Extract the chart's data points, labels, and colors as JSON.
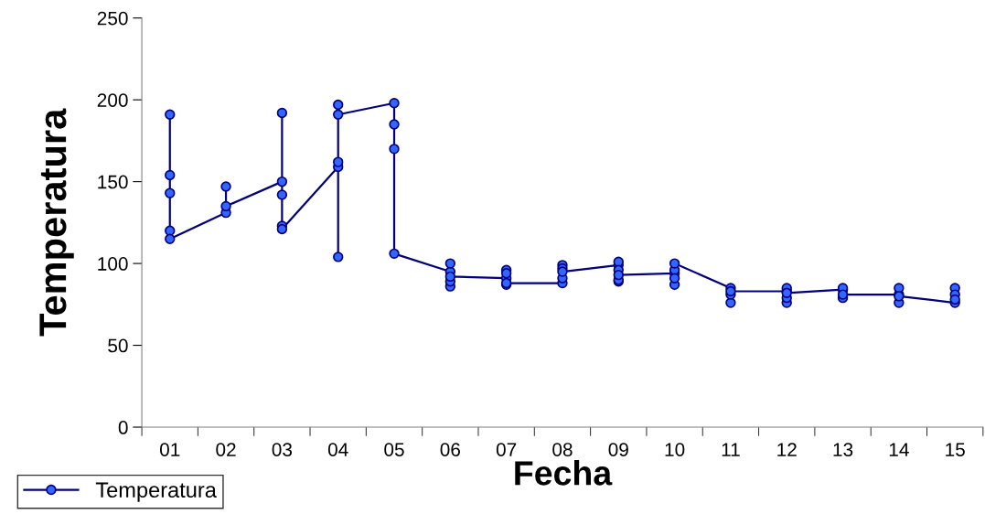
{
  "chart_data": {
    "type": "line",
    "xlabel": "Fecha",
    "ylabel": "Temperatura",
    "categories": [
      "01",
      "02",
      "03",
      "04",
      "05",
      "06",
      "07",
      "08",
      "09",
      "10",
      "11",
      "12",
      "13",
      "14",
      "15"
    ],
    "series": [
      {
        "name": "Temperatura",
        "color": "#000080",
        "x": [
          "01",
          "01",
          "01",
          "01",
          "01",
          "02",
          "02",
          "02",
          "03",
          "03",
          "03",
          "03",
          "03",
          "04",
          "04",
          "04",
          "04",
          "04",
          "05",
          "05",
          "05",
          "05",
          "06",
          "06",
          "06",
          "06",
          "06",
          "07",
          "07",
          "07",
          "07",
          "07",
          "08",
          "08",
          "08",
          "08",
          "08",
          "09",
          "09",
          "09",
          "09",
          "09",
          "09",
          "10",
          "10",
          "10",
          "10",
          "10",
          "11",
          "11",
          "11",
          "11",
          "12",
          "12",
          "12",
          "12",
          "12",
          "13",
          "13",
          "13",
          "13",
          "14",
          "14",
          "14",
          "14",
          "15",
          "15",
          "15",
          "15"
        ],
        "values": [
          191,
          154,
          143,
          120,
          115,
          131,
          147,
          135,
          150,
          192,
          142,
          123,
          121,
          159,
          162,
          104,
          197,
          191,
          198,
          185,
          170,
          106,
          95,
          100,
          86,
          89,
          92,
          91,
          96,
          94,
          87,
          88,
          88,
          91,
          99,
          97,
          95,
          99,
          101,
          89,
          90,
          96,
          93,
          94,
          96,
          87,
          91,
          100,
          85,
          76,
          81,
          83,
          83,
          85,
          76,
          79,
          82,
          84,
          85,
          79,
          81,
          81,
          85,
          76,
          80,
          76,
          85,
          81,
          78
        ]
      }
    ],
    "ylim": [
      0,
      250
    ],
    "yticks": [
      0,
      50,
      100,
      150,
      200,
      250
    ],
    "marker": "circle",
    "line_style": "solid",
    "grid": false,
    "legend": "bottom left"
  }
}
